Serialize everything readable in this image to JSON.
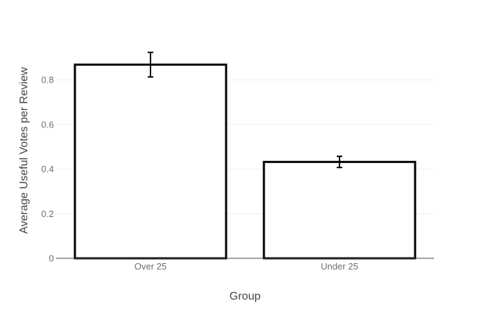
{
  "chart_data": {
    "type": "bar",
    "categories": [
      "Over 25",
      "Under 25"
    ],
    "values": [
      0.868,
      0.432
    ],
    "error": [
      0.055,
      0.025
    ],
    "xlabel": "Group",
    "ylabel": "Average Useful Votes per Review",
    "ylim": [
      0,
      0.95
    ],
    "yticks": [
      0,
      0.2,
      0.4,
      0.6,
      0.8
    ],
    "ytick_labels": [
      "0",
      "0.2",
      "0.4",
      "0.6",
      "0.8"
    ],
    "grid": true,
    "legend": false,
    "colors": {
      "bar_fill": "#ffffff",
      "bar_stroke": "#000000",
      "gridline": "#eeeeee",
      "axis_line": "#444444",
      "error_bar": "#000000"
    }
  }
}
